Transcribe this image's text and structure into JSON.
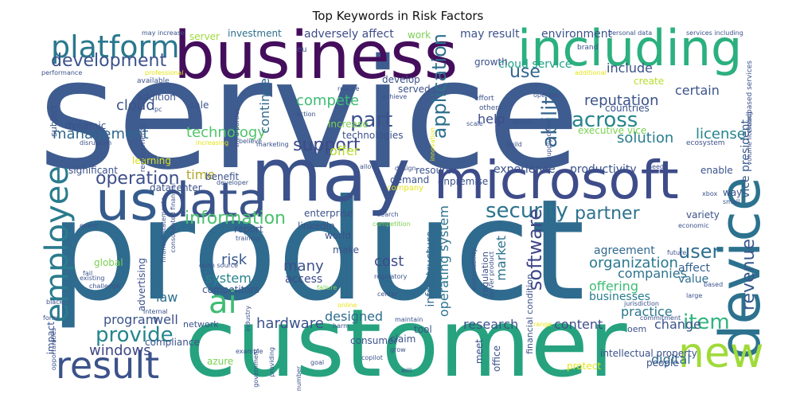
{
  "title": "Top Keywords in Risk Factors",
  "words": [
    {
      "text": "service",
      "color": "#3e5c8f"
    },
    {
      "text": "product",
      "color": "#2f6b8e"
    },
    {
      "text": "customer",
      "color": "#26a27f"
    },
    {
      "text": "business",
      "color": "#440e5c"
    },
    {
      "text": "including",
      "color": "#2bb07f"
    },
    {
      "text": "may",
      "color": "#3b528b"
    },
    {
      "text": "microsoft",
      "color": "#3e4c8a"
    },
    {
      "text": "data",
      "color": "#3a538b"
    },
    {
      "text": "us",
      "color": "#365c8d"
    },
    {
      "text": "device",
      "color": "#2c728e"
    },
    {
      "text": "platform",
      "color": "#2a788e"
    },
    {
      "text": "result",
      "color": "#3b528b"
    },
    {
      "text": "new",
      "color": "#a0da39"
    },
    {
      "text": "ai",
      "color": "#3fbc73"
    },
    {
      "text": "employee",
      "color": "#2a7b8e"
    },
    {
      "text": "security",
      "color": "#2c738e"
    },
    {
      "text": "development",
      "color": "#3b528b"
    },
    {
      "text": "information",
      "color": "#4ac16d"
    },
    {
      "text": "operation",
      "color": "#3d4e8a"
    },
    {
      "text": "application",
      "color": "#2e6f8e"
    },
    {
      "text": "across",
      "color": "#25858e"
    },
    {
      "text": "ability",
      "color": "#33638d"
    },
    {
      "text": "part",
      "color": "#3b528b"
    },
    {
      "text": "support",
      "color": "#3e4989"
    },
    {
      "text": "partner",
      "color": "#2d708e"
    },
    {
      "text": "software",
      "color": "#3f4788"
    },
    {
      "text": "provide",
      "color": "#25858e"
    },
    {
      "text": "revenue",
      "color": "#38598c"
    },
    {
      "text": "item",
      "color": "#2fb47c"
    },
    {
      "text": "use",
      "color": "#32658e"
    },
    {
      "text": "user",
      "color": "#2e6e8e"
    },
    {
      "text": "reputation",
      "color": "#3b528b"
    },
    {
      "text": "technology",
      "color": "#50c46a"
    },
    {
      "text": "management",
      "color": "#31678e"
    },
    {
      "text": "solution",
      "color": "#287d8e"
    },
    {
      "text": "cloud",
      "color": "#3b528b"
    },
    {
      "text": "continue",
      "color": "#30698e"
    },
    {
      "text": "compete",
      "color": "#3dbc74"
    },
    {
      "text": "help",
      "color": "#3e4c8a"
    },
    {
      "text": "license",
      "color": "#25848e"
    },
    {
      "text": "vice president",
      "color": "#38598c"
    },
    {
      "text": "organization",
      "color": "#2a788e"
    },
    {
      "text": "cost",
      "color": "#3e4c8a"
    },
    {
      "text": "many",
      "color": "#3b528b"
    },
    {
      "text": "windows",
      "color": "#3f4788"
    },
    {
      "text": "hardware",
      "color": "#3b528b"
    },
    {
      "text": "risk",
      "color": "#38588c"
    },
    {
      "text": "system",
      "color": "#26828e"
    },
    {
      "text": "law",
      "color": "#2d708e"
    },
    {
      "text": "offering",
      "color": "#3dbc74"
    },
    {
      "text": "companies",
      "color": "#2d718e"
    },
    {
      "text": "research",
      "color": "#3b528b"
    },
    {
      "text": "content",
      "color": "#3e4c8a"
    },
    {
      "text": "change",
      "color": "#3b528b"
    },
    {
      "text": "digital",
      "color": "#2e6d8e"
    },
    {
      "text": "operating system",
      "color": "#2c738e"
    },
    {
      "text": "infrastructure",
      "color": "#31688e"
    },
    {
      "text": "designed",
      "color": "#2e6d8e"
    },
    {
      "text": "time",
      "color": "#ada72c"
    },
    {
      "text": "market",
      "color": "#2c728e"
    },
    {
      "text": "program",
      "color": "#3b528b"
    },
    {
      "text": "offer",
      "color": "#b5de2b"
    },
    {
      "text": "well",
      "color": "#3b528b"
    },
    {
      "text": "access",
      "color": "#3e4c8a"
    },
    {
      "text": "agreement",
      "color": "#30698e"
    },
    {
      "text": "practice",
      "color": "#2a788e"
    },
    {
      "text": "businesses",
      "color": "#287c8e"
    },
    {
      "text": "value",
      "color": "#2d708e"
    },
    {
      "text": "affect",
      "color": "#34618d"
    },
    {
      "text": "include",
      "color": "#3b528b"
    },
    {
      "text": "certain",
      "color": "#3b528b"
    },
    {
      "text": "adversely affect",
      "color": "#3e4c8a"
    },
    {
      "text": "may result",
      "color": "#3b528b"
    },
    {
      "text": "environment",
      "color": "#3b528b"
    },
    {
      "text": "investment",
      "color": "#2d708e"
    },
    {
      "text": "server",
      "color": "#9ed93a"
    },
    {
      "text": "work",
      "color": "#7ad151"
    },
    {
      "text": "cloud service",
      "color": "#1fa187"
    },
    {
      "text": "growth",
      "color": "#3b528b"
    },
    {
      "text": "develop",
      "color": "#3b528b"
    },
    {
      "text": "served",
      "color": "#3b528b"
    },
    {
      "text": "experience",
      "color": "#3b528b"
    },
    {
      "text": "productivity",
      "color": "#3b528b"
    },
    {
      "text": "resource",
      "color": "#3b528b"
    },
    {
      "text": "demand",
      "color": "#3b528b"
    },
    {
      "text": "onpremise",
      "color": "#3b528b"
    },
    {
      "text": "enterprise",
      "color": "#3b528b"
    },
    {
      "text": "linkedin",
      "color": "#3b528b"
    },
    {
      "text": "world",
      "color": "#3b528b"
    },
    {
      "text": "make",
      "color": "#3b528b"
    },
    {
      "text": "report",
      "color": "#3b528b"
    },
    {
      "text": "benefit",
      "color": "#3b528b"
    },
    {
      "text": "datacenter",
      "color": "#3b528b"
    },
    {
      "text": "significant",
      "color": "#3b528b"
    },
    {
      "text": "learning",
      "color": "#d8e219"
    },
    {
      "text": "sale",
      "color": "#3b528b"
    },
    {
      "text": "addition",
      "color": "#3b528b"
    },
    {
      "text": "dynamic",
      "color": "#3b528b"
    },
    {
      "text": "global",
      "color": "#7ad151"
    },
    {
      "text": "advertising",
      "color": "#3b528b"
    },
    {
      "text": "competitors",
      "color": "#3b528b"
    },
    {
      "text": "network",
      "color": "#3b528b"
    },
    {
      "text": "compliance",
      "color": "#3b528b"
    },
    {
      "text": "impact",
      "color": "#3b528b"
    },
    {
      "text": "azure",
      "color": "#7ad151"
    },
    {
      "text": "consumer",
      "color": "#3b528b"
    },
    {
      "text": "tool",
      "color": "#3b528b"
    },
    {
      "text": "claim",
      "color": "#3b528b"
    },
    {
      "text": "meet",
      "color": "#3b528b"
    },
    {
      "text": "office",
      "color": "#3b528b"
    },
    {
      "text": "intellectual property",
      "color": "#3b528b"
    },
    {
      "text": "people",
      "color": "#3b528b"
    },
    {
      "text": "protect",
      "color": "#e5e419"
    },
    {
      "text": "oem",
      "color": "#3b528b"
    },
    {
      "text": "enable",
      "color": "#3b528b"
    },
    {
      "text": "variety",
      "color": "#3b528b"
    },
    {
      "text": "way",
      "color": "#3b528b"
    },
    {
      "text": "executive vice",
      "color": "#7ad151"
    },
    {
      "text": "create",
      "color": "#b5de2b"
    },
    {
      "text": "countries",
      "color": "#3b528b"
    },
    {
      "text": "financial condition",
      "color": "#3b528b"
    },
    {
      "text": "regulation",
      "color": "#3b528b"
    },
    {
      "text": "technologies",
      "color": "#3b528b"
    },
    {
      "text": "increase",
      "color": "#7ad151"
    },
    {
      "text": "subject",
      "color": "#3b528b"
    },
    {
      "text": "requirements",
      "color": "#3b528b"
    },
    {
      "text": "eu",
      "color": "#3b528b"
    },
    {
      "text": "brand",
      "color": "#3b528b"
    },
    {
      "text": "may increase",
      "color": "#3b528b"
    },
    {
      "text": "personal data",
      "color": "#3b528b"
    },
    {
      "text": "services including",
      "color": "#3b528b"
    },
    {
      "text": "cloudbased services",
      "color": "#3b528b"
    },
    {
      "text": "volume licensing",
      "color": "#3b528b"
    },
    {
      "text": "ecosystem",
      "color": "#3b528b"
    },
    {
      "text": "supply chain",
      "color": "#3b528b"
    },
    {
      "text": "attack",
      "color": "#3b528b"
    },
    {
      "text": "build",
      "color": "#3b528b"
    },
    {
      "text": "operate",
      "color": "#3b528b"
    },
    {
      "text": "effort",
      "color": "#3b528b"
    },
    {
      "text": "others",
      "color": "#3b528b"
    },
    {
      "text": "scale",
      "color": "#3b528b"
    },
    {
      "text": "achieve",
      "color": "#3b528b"
    },
    {
      "text": "reduce",
      "color": "#3b528b"
    },
    {
      "text": "action",
      "color": "#3b528b"
    },
    {
      "text": "third parties",
      "color": "#3b528b"
    },
    {
      "text": "believe",
      "color": "#3b528b"
    },
    {
      "text": "pc",
      "color": "#3b528b"
    },
    {
      "text": "available",
      "color": "#3b528b"
    },
    {
      "text": "performance",
      "color": "#3b528b"
    },
    {
      "text": "professional",
      "color": "#e5e419"
    },
    {
      "text": "disruption",
      "color": "#3b528b"
    },
    {
      "text": "increasing",
      "color": "#e5e419"
    },
    {
      "text": "marketing",
      "color": "#3b528b"
    },
    {
      "text": "developer",
      "color": "#3b528b"
    },
    {
      "text": "allow",
      "color": "#3b528b"
    },
    {
      "text": "design",
      "color": "#3b528b"
    },
    {
      "text": "company",
      "color": "#e5e419"
    },
    {
      "text": "search",
      "color": "#3b528b"
    },
    {
      "text": "competition",
      "color": "#7ad151"
    },
    {
      "text": "training",
      "color": "#3b528b"
    },
    {
      "text": "consolidated financial",
      "color": "#3b528b"
    },
    {
      "text": "financial statements",
      "color": "#3b528b"
    },
    {
      "text": "event",
      "color": "#3b528b"
    },
    {
      "text": "fail",
      "color": "#3b528b"
    },
    {
      "text": "existing",
      "color": "#3b528b"
    },
    {
      "text": "challenge",
      "color": "#3b528b"
    },
    {
      "text": "open source",
      "color": "#3b528b"
    },
    {
      "text": "regulatory",
      "color": "#3b528b"
    },
    {
      "text": "failure",
      "color": "#7ad151"
    },
    {
      "text": "center",
      "color": "#3b528b"
    },
    {
      "text": "online",
      "color": "#e5e419"
    },
    {
      "text": "internal",
      "color": "#3b528b"
    },
    {
      "text": "black",
      "color": "#3b528b"
    },
    {
      "text": "form",
      "color": "#3b528b"
    },
    {
      "text": "opportunities",
      "color": "#3b528b"
    },
    {
      "text": "industry",
      "color": "#3b528b"
    },
    {
      "text": "harm",
      "color": "#3b528b"
    },
    {
      "text": "maintain",
      "color": "#3b528b"
    },
    {
      "text": "grow",
      "color": "#3b528b"
    },
    {
      "text": "copilot",
      "color": "#3b528b"
    },
    {
      "text": "will",
      "color": "#3b528b"
    },
    {
      "text": "goal",
      "color": "#3b528b"
    },
    {
      "text": "number",
      "color": "#3b528b"
    },
    {
      "text": "providing",
      "color": "#3b528b"
    },
    {
      "text": "example",
      "color": "#3b528b"
    },
    {
      "text": "government",
      "color": "#3b528b"
    },
    {
      "text": "range",
      "color": "#e5e419"
    },
    {
      "text": "jurisdiction",
      "color": "#3b528b"
    },
    {
      "text": "commitment",
      "color": "#3b528b"
    },
    {
      "text": "large",
      "color": "#3b528b"
    },
    {
      "text": "based",
      "color": "#3b528b"
    },
    {
      "text": "future",
      "color": "#3b528b"
    },
    {
      "text": "economic",
      "color": "#3b528b"
    },
    {
      "text": "small",
      "color": "#3b528b"
    },
    {
      "text": "xbox",
      "color": "#3b528b"
    },
    {
      "text": "need",
      "color": "#3b528b"
    },
    {
      "text": "sustainability",
      "color": "#3b528b"
    },
    {
      "text": "server product",
      "color": "#3b528b"
    },
    {
      "text": "innovation",
      "color": "#e5e419"
    },
    {
      "text": "additional",
      "color": "#e5e419"
    }
  ]
}
